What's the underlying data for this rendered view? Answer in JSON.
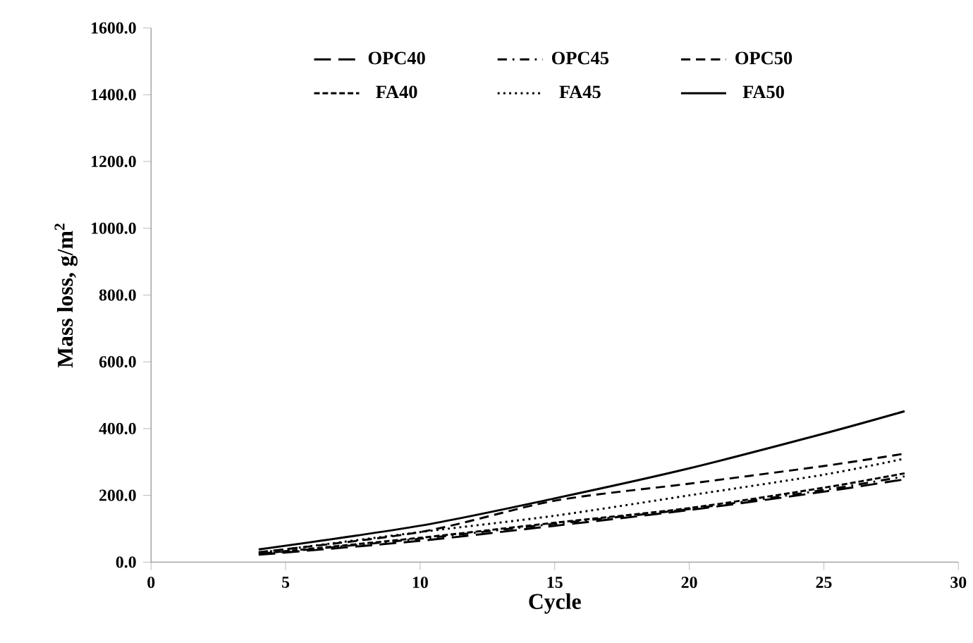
{
  "chart_data": {
    "type": "line",
    "xlabel": "Cycle",
    "ylabel": "Mass loss, g/m$^{2}$",
    "xlim": [
      0,
      30
    ],
    "xticks": [
      0,
      5,
      10,
      15,
      20,
      25,
      30
    ],
    "ylim": [
      0,
      1600
    ],
    "yticks": [
      {
        "value": 0,
        "label": "0.0"
      },
      {
        "value": 200,
        "label": "200.0"
      },
      {
        "value": 400,
        "label": "400.0"
      },
      {
        "value": 600,
        "label": "600.0"
      },
      {
        "value": 800,
        "label": "800.0"
      },
      {
        "value": 1000,
        "label": "1000.0"
      },
      {
        "value": 1200,
        "label": "1200.0"
      },
      {
        "value": 1400,
        "label": "1400.0"
      },
      {
        "value": 1600,
        "label": "1600.0"
      }
    ],
    "x": [
      4,
      10,
      15,
      20,
      25,
      28
    ],
    "grid": false,
    "legend": "top",
    "series": [
      {
        "name": "OPC40",
        "color": "#000000",
        "line_style": "longdash",
        "values": [
          22,
          64,
          109,
          156,
          211,
          248
        ]
      },
      {
        "name": "OPC45",
        "color": "#000000",
        "line_style": "dashdot",
        "values": [
          24,
          70,
          115,
          159,
          216,
          257
        ]
      },
      {
        "name": "OPC50",
        "color": "#000000",
        "line_style": "dashed",
        "values": [
          30,
          90,
          184,
          235,
          288,
          325
        ]
      },
      {
        "name": "FA40",
        "color": "#000000",
        "line_style": "densedash",
        "values": [
          25,
          73,
          118,
          162,
          223,
          266
        ]
      },
      {
        "name": "FA45",
        "color": "#000000",
        "line_style": "dotted",
        "values": [
          28,
          90,
          139,
          200,
          262,
          310
        ]
      },
      {
        "name": "FA50",
        "color": "#000000",
        "line_style": "solid",
        "values": [
          38,
          109,
          191,
          281,
          385,
          452
        ]
      }
    ]
  }
}
